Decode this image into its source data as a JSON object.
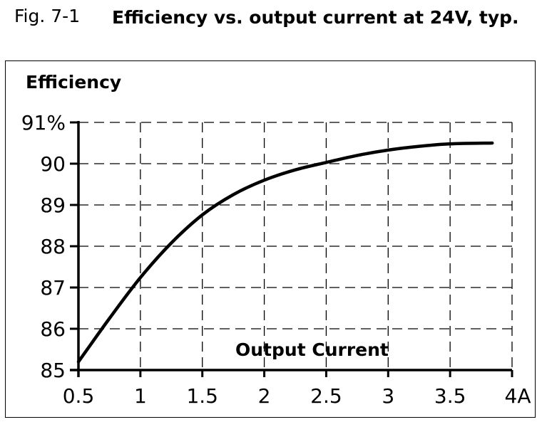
{
  "figure_label": "Fig. 7-1",
  "chart_data": {
    "type": "line",
    "title": "Efficiency vs. output current at 24V, typ.",
    "ylabel": "Efficiency",
    "xlabel": "Output Current",
    "xlim": [
      0.5,
      4
    ],
    "ylim": [
      85,
      91
    ],
    "x_ticks": [
      0.5,
      1,
      1.5,
      2,
      2.5,
      3,
      3.5,
      4
    ],
    "x_tick_labels": [
      "0.5",
      "1",
      "1.5",
      "2",
      "2.5",
      "3",
      "3.5",
      "4A"
    ],
    "y_ticks": [
      85,
      86,
      87,
      88,
      89,
      90,
      91
    ],
    "y_tick_labels": [
      "85",
      "86",
      "87",
      "88",
      "89",
      "90",
      "91%"
    ],
    "grid": true,
    "grid_style": "dashed",
    "series": [
      {
        "x": [
          0.5,
          0.75,
          1,
          1.25,
          1.5,
          1.75,
          2,
          2.25,
          2.5,
          2.75,
          3,
          3.25,
          3.5,
          3.84
        ],
        "y": [
          85.2,
          86.25,
          87.24,
          88.08,
          88.76,
          89.25,
          89.6,
          89.85,
          90.03,
          90.2,
          90.33,
          90.42,
          90.48,
          90.5
        ],
        "color": "#000000"
      }
    ]
  }
}
